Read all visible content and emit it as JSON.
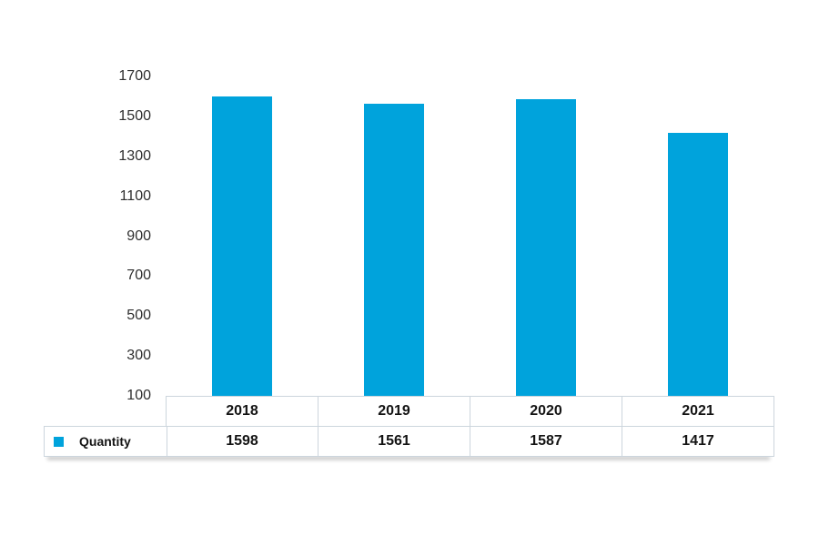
{
  "chart_data": {
    "type": "bar",
    "title": "",
    "xlabel": "",
    "ylabel": "",
    "categories": [
      "2018",
      "2019",
      "2020",
      "2021"
    ],
    "series": [
      {
        "name": "Quantity",
        "values": [
          1598,
          1561,
          1587,
          1417
        ]
      }
    ],
    "ylim": [
      100,
      1700
    ],
    "yticks": [
      1700,
      1500,
      1300,
      1100,
      900,
      700,
      500,
      300,
      100
    ],
    "grid": false,
    "legend_position": "bottom-left-table",
    "bar_color": "#00a3dc"
  },
  "table": {
    "legend_label": "Quantity",
    "columns": [
      "2018",
      "2019",
      "2020",
      "2021"
    ],
    "values": [
      "1598",
      "1561",
      "1587",
      "1417"
    ]
  },
  "colors": {
    "bar": "#00a3dc",
    "table_border": "#ccd5dd",
    "text_dark": "#141414",
    "axis_label": "#2f2f2f"
  }
}
